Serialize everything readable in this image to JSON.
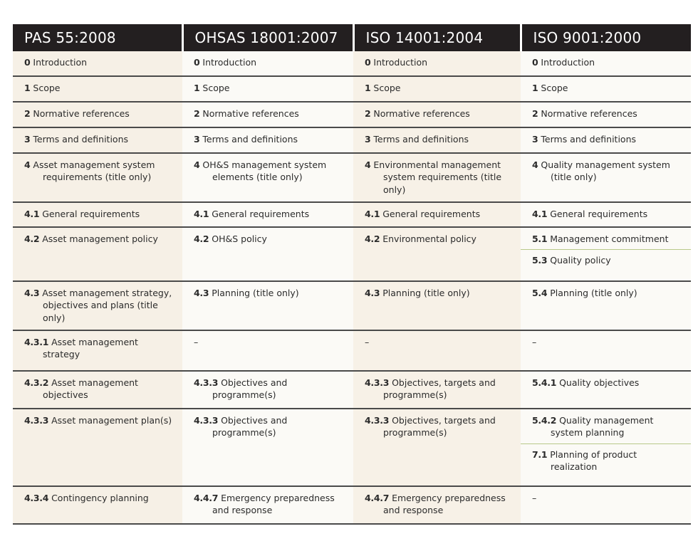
{
  "headers": [
    "PAS 55:2008",
    "OHSAS 18001:2007",
    "ISO 14001:2004",
    "ISO 9001:2000"
  ],
  "rows": [
    [
      [
        {
          "num": "0",
          "text": "Introduction"
        }
      ],
      [
        {
          "num": "0",
          "text": "Introduction"
        }
      ],
      [
        {
          "num": "0",
          "text": "Introduction"
        }
      ],
      [
        {
          "num": "0",
          "text": "Introduction"
        }
      ]
    ],
    [
      [
        {
          "num": "1",
          "text": "Scope"
        }
      ],
      [
        {
          "num": "1",
          "text": "Scope"
        }
      ],
      [
        {
          "num": "1",
          "text": "Scope"
        }
      ],
      [
        {
          "num": "1",
          "text": "Scope"
        }
      ]
    ],
    [
      [
        {
          "num": "2",
          "text": "Normative references"
        }
      ],
      [
        {
          "num": "2",
          "text": "Normative references"
        }
      ],
      [
        {
          "num": "2",
          "text": "Normative references"
        }
      ],
      [
        {
          "num": "2",
          "text": "Normative references"
        }
      ]
    ],
    [
      [
        {
          "num": "3",
          "text": "Terms and definitions"
        }
      ],
      [
        {
          "num": "3",
          "text": "Terms and definitions"
        }
      ],
      [
        {
          "num": "3",
          "text": "Terms and definitions"
        }
      ],
      [
        {
          "num": "3",
          "text": "Terms and definitions"
        }
      ]
    ],
    [
      [
        {
          "num": "4",
          "text": "Asset management system requirements (title only)"
        }
      ],
      [
        {
          "num": "4",
          "text": "OH&S management system elements (title only)"
        }
      ],
      [
        {
          "num": "4",
          "text": "Environmental management system requirements (title only)"
        }
      ],
      [
        {
          "num": "4",
          "text": "Quality management system (title only)"
        }
      ]
    ],
    [
      [
        {
          "num": "4.1",
          "text": "General requirements"
        }
      ],
      [
        {
          "num": "4.1",
          "text": "General requirements"
        }
      ],
      [
        {
          "num": "4.1",
          "text": "General requirements"
        }
      ],
      [
        {
          "num": "4.1",
          "text": "General requirements"
        }
      ]
    ],
    [
      [
        {
          "num": "4.2",
          "text": "Asset management policy"
        }
      ],
      [
        {
          "num": "4.2",
          "text": "OH&S policy"
        }
      ],
      [
        {
          "num": "4.2",
          "text": "Environmental policy"
        }
      ],
      [
        {
          "num": "5.1",
          "text": "Management commitment"
        },
        {
          "num": "5.3",
          "text": "Quality policy"
        }
      ]
    ],
    [
      [
        {
          "num": "4.3",
          "text": "Asset management strategy, objectives and plans (title only)"
        }
      ],
      [
        {
          "num": "4.3",
          "text": "Planning (title only)"
        }
      ],
      [
        {
          "num": "4.3",
          "text": "Planning (title only)"
        }
      ],
      [
        {
          "num": "5.4",
          "text": "Planning (title only)"
        }
      ]
    ],
    [
      [
        {
          "num": "4.3.1",
          "text": "Asset management strategy"
        }
      ],
      [
        {
          "num": "",
          "text": "–"
        }
      ],
      [
        {
          "num": "",
          "text": "–"
        }
      ],
      [
        {
          "num": "",
          "text": "–"
        }
      ]
    ],
    [
      [
        {
          "num": "4.3.2",
          "text": "Asset management objectives"
        }
      ],
      [
        {
          "num": "4.3.3",
          "text": "Objectives and programme(s)"
        }
      ],
      [
        {
          "num": "4.3.3",
          "text": "Objectives, targets and programme(s)"
        }
      ],
      [
        {
          "num": "5.4.1",
          "text": "Quality objectives"
        }
      ]
    ],
    [
      [
        {
          "num": "4.3.3",
          "text": "Asset management plan(s)"
        }
      ],
      [
        {
          "num": "4.3.3",
          "text": "Objectives and programme(s)"
        }
      ],
      [
        {
          "num": "4.3.3",
          "text": "Objectives, targets and programme(s)"
        }
      ],
      [
        {
          "num": "5.4.2",
          "text": "Quality management system planning"
        },
        {
          "num": "7.1",
          "text": "Planning of product realization"
        }
      ]
    ],
    [
      [
        {
          "num": "4.3.4",
          "text": "Contingency planning"
        }
      ],
      [
        {
          "num": "4.4.7",
          "text": "Emergency preparedness and response"
        }
      ],
      [
        {
          "num": "4.4.7",
          "text": "Emergency preparedness and response"
        }
      ],
      [
        {
          "num": "",
          "text": "–"
        }
      ]
    ]
  ]
}
